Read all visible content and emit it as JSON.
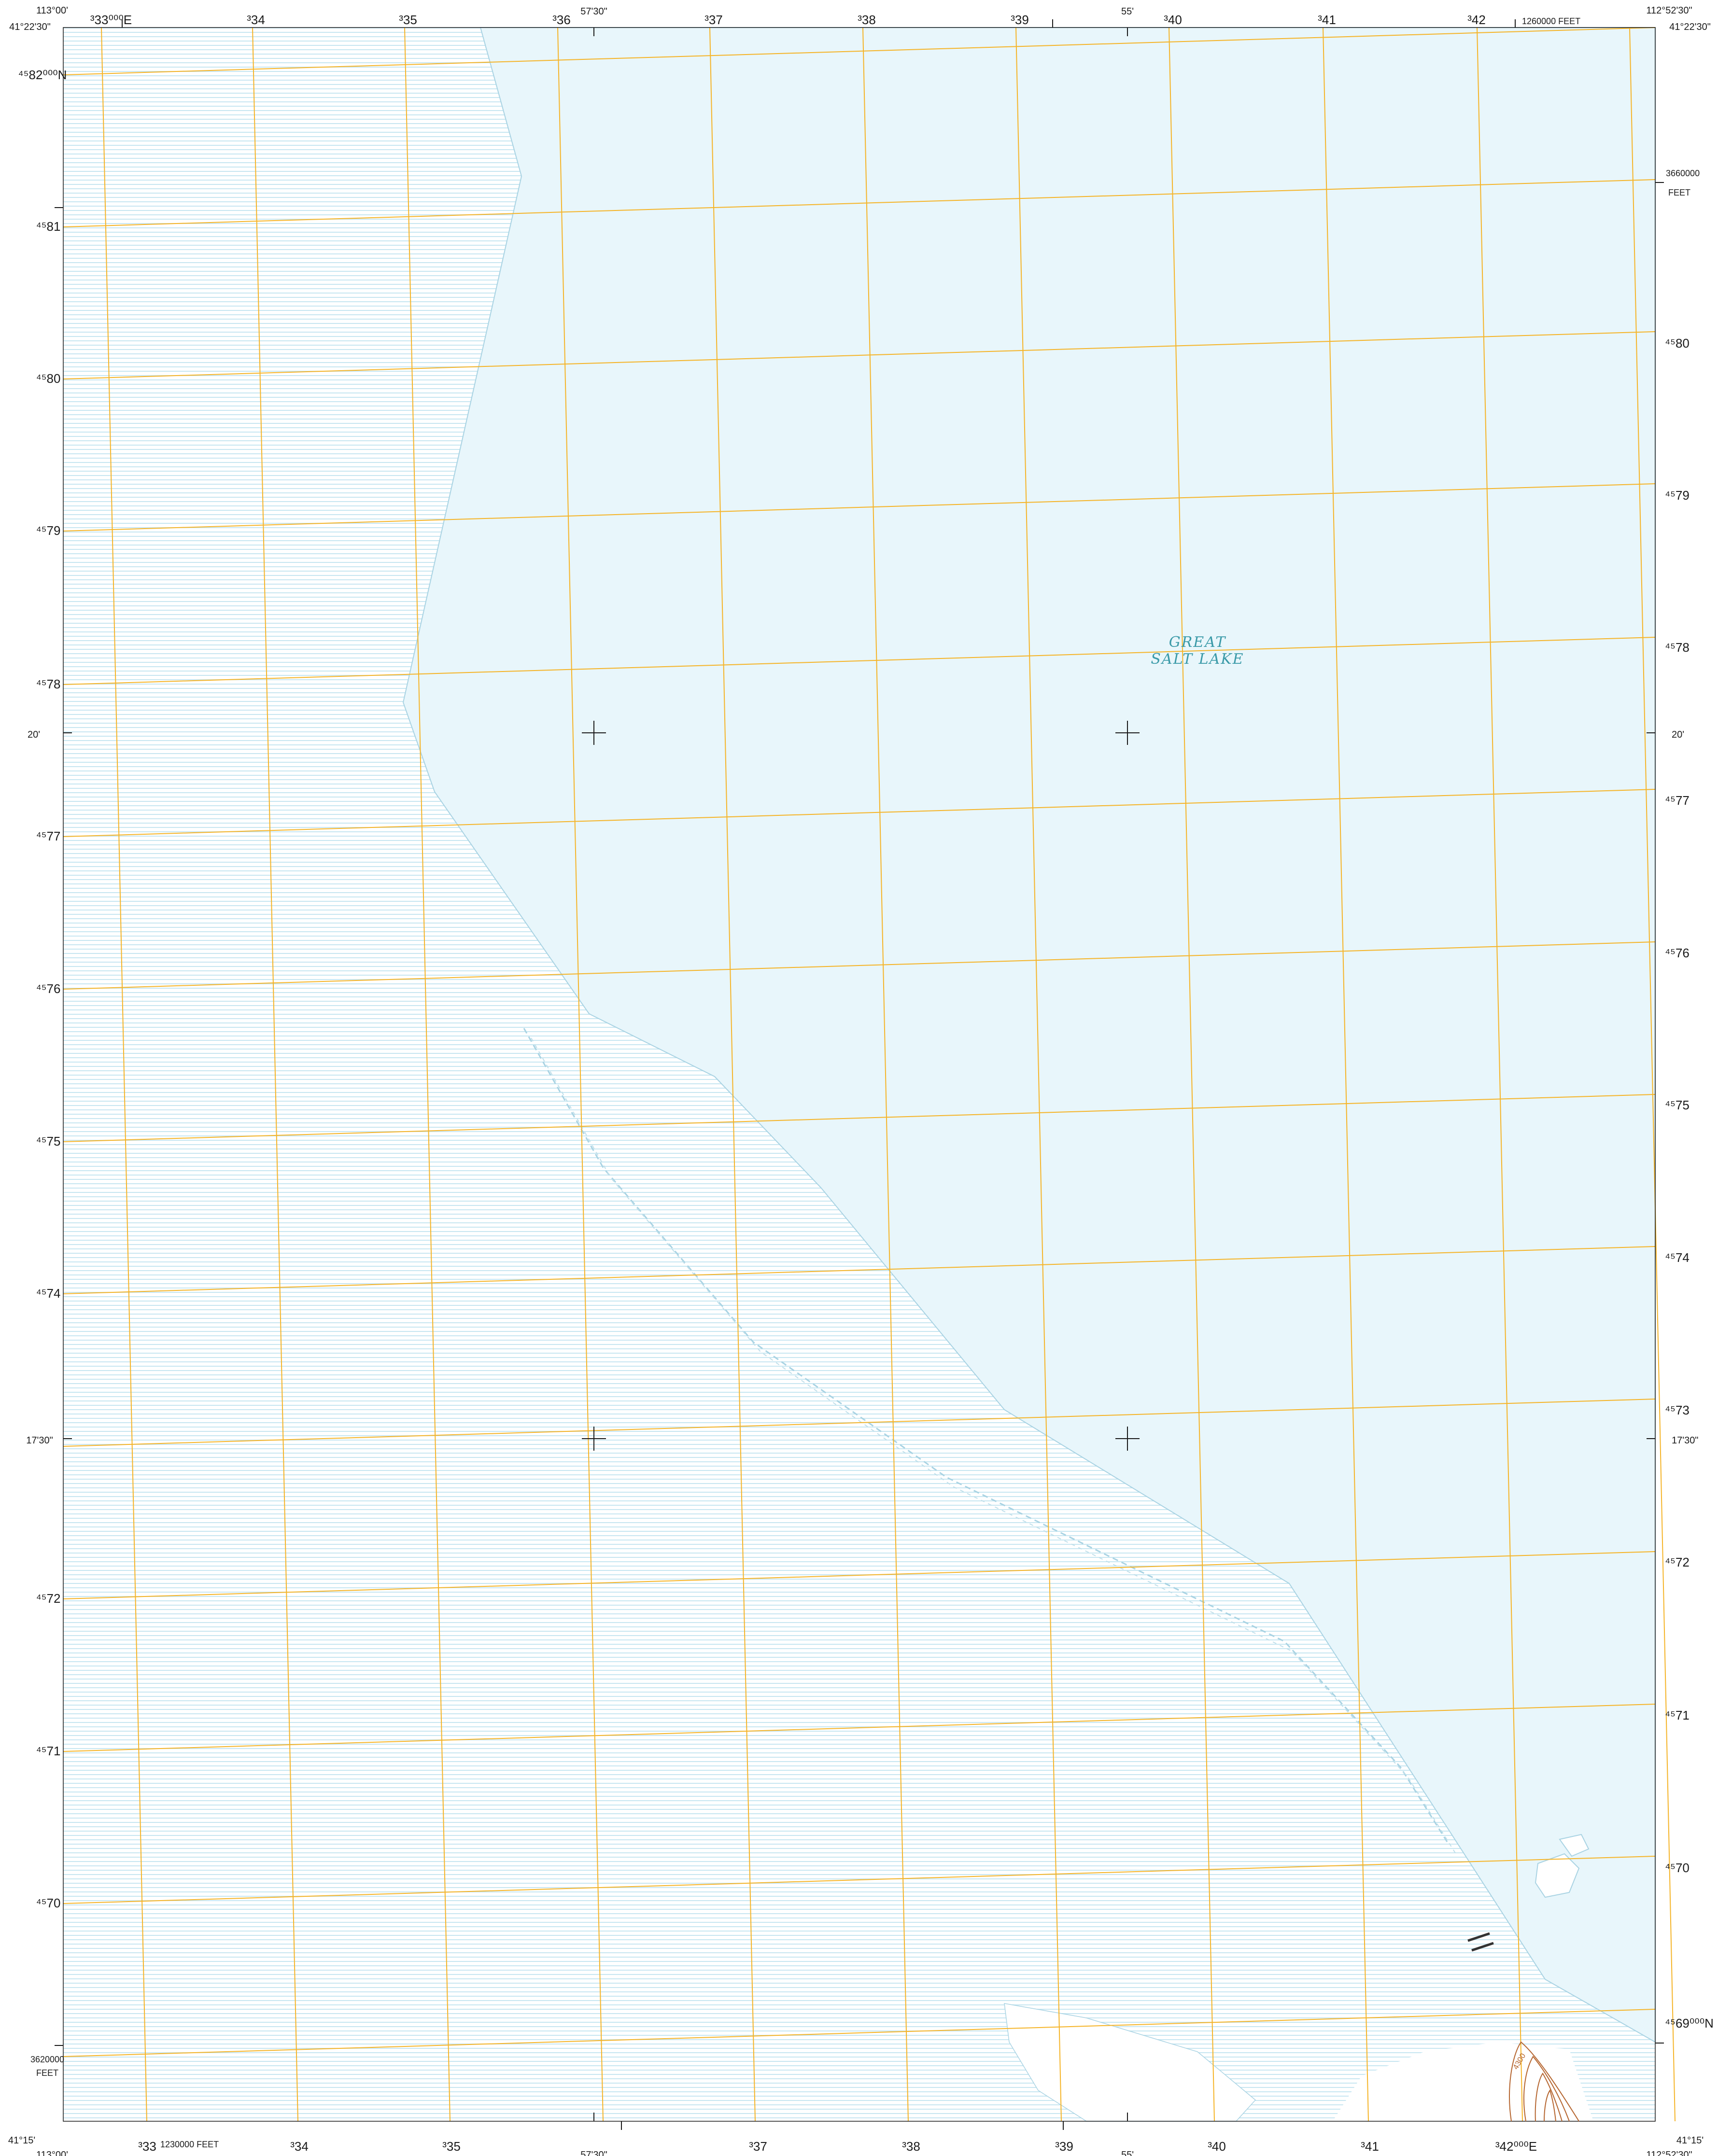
{
  "colors": {
    "water": "#e8f6fb",
    "shoreline": "#a9d3e3",
    "flat_pattern": "#c7e6f1",
    "grid": "#f5b428",
    "contour": "#b5652f",
    "tick": "#1a1a1a"
  },
  "corners": {
    "top_left_lon": "113°00'",
    "top_left_lat": "41°22'30\"",
    "top_right_lon": "112°52'30\"",
    "top_right_lat": "41°22'30\"",
    "bottom_left_lon": "113°00'",
    "bottom_left_lat": "41°15'",
    "bottom_right_lon": "112°52'30\"",
    "bottom_right_lat": "41°15'"
  },
  "top_edge": {
    "easting_first": "³33⁰⁰⁰E",
    "eastings": [
      "³34",
      "³35",
      "³36",
      "³37",
      "³38",
      "³39",
      "³40",
      "³41",
      "³42"
    ],
    "lon_ticks": [
      "57'30\"",
      "55'"
    ],
    "feet_label": "1260000 FEET"
  },
  "bottom_edge": {
    "eastings": [
      "³33",
      "³34",
      "³35",
      "³37",
      "³38",
      "³39",
      "³40",
      "³41"
    ],
    "easting_last": "³42⁰⁰⁰E",
    "feet_label": "1230000 FEET",
    "lon_ticks": [
      "57'30\"",
      "55'"
    ]
  },
  "left_edge": {
    "northing_first": "⁴⁵82⁰⁰⁰N",
    "northings": [
      "⁴⁵81",
      "⁴⁵80",
      "⁴⁵79",
      "⁴⁵78",
      "⁴⁵77",
      "⁴⁵76",
      "⁴⁵75",
      "⁴⁵74",
      "⁴⁵72",
      "⁴⁵71",
      "⁴⁵70"
    ],
    "lat_ticks": [
      "20'",
      "17'30\""
    ],
    "feet_value": "3620000",
    "feet_unit": "FEET"
  },
  "right_edge": {
    "feet_value": "3660000",
    "feet_unit": "FEET",
    "northings": [
      "⁴⁵80",
      "⁴⁵79",
      "⁴⁵78",
      "⁴⁵77",
      "⁴⁵76",
      "⁴⁵75",
      "⁴⁵74",
      "⁴⁵73",
      "⁴⁵72",
      "⁴⁵71",
      "⁴⁵70"
    ],
    "northing_last": "⁴⁵69⁰⁰⁰N",
    "lat_ticks": [
      "20'",
      "17'30\""
    ]
  },
  "features": {
    "lake_name_line1": "GREAT",
    "lake_name_line2": "SALT LAKE",
    "contour_label": "4300"
  }
}
